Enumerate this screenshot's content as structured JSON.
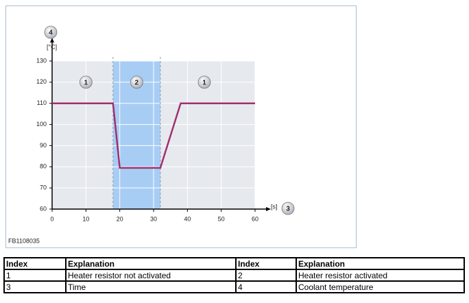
{
  "chart_data": {
    "type": "line",
    "x": [
      0,
      18,
      20,
      32,
      38,
      60
    ],
    "values": [
      110,
      110,
      79.5,
      79.5,
      110,
      110
    ],
    "color": "#a0306e",
    "xlim": [
      0,
      60
    ],
    "xticks": [
      0,
      10,
      20,
      30,
      40,
      50,
      60
    ],
    "ylim": [
      60,
      130
    ],
    "yticks": [
      60,
      70,
      80,
      90,
      100,
      110,
      120,
      130
    ],
    "grid": true,
    "shaded_span": [
      18,
      32
    ],
    "shade_color": "#a8cdf5",
    "y_unit": "[°C]",
    "x_unit": "[s]",
    "y_index": "4",
    "x_index": "3",
    "annotations": [
      {
        "text": "1",
        "x": 10,
        "y": 120
      },
      {
        "text": "2",
        "x": 25,
        "y": 120
      },
      {
        "text": "1",
        "x": 45,
        "y": 120
      }
    ]
  },
  "figure_id": "FB1108035",
  "table": {
    "header": [
      "Index",
      "Explanation",
      "Index",
      "Explanation"
    ],
    "rows": [
      [
        "1",
        "Heater resistor not activated",
        "2",
        "Heater resistor activated"
      ],
      [
        "3",
        "Time",
        "4",
        "Coolant temperature"
      ]
    ]
  }
}
